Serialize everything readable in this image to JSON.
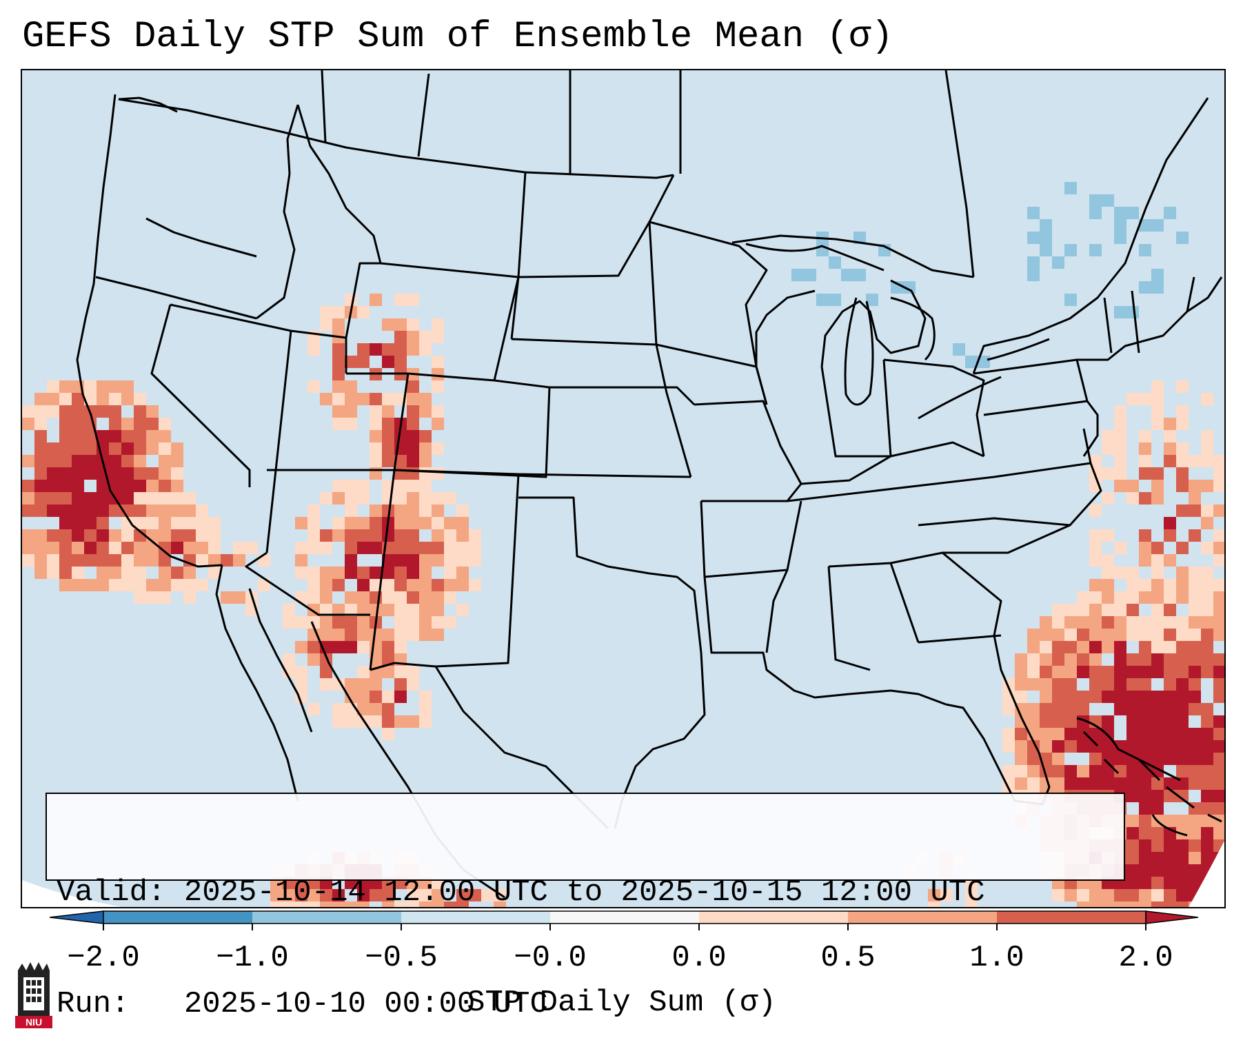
{
  "title": "GEFS Daily STP Sum of Ensemble Mean (σ)",
  "info": {
    "valid_line": "Valid: 2025-10-14 12:00 UTC to 2025-10-15 12:00 UTC",
    "run_line": "Run:   2025-10-10 00:00 UTC"
  },
  "colorbar": {
    "label": "STP Daily Sum (σ)",
    "ticks": [
      "−2.0",
      "−1.0",
      "−0.5",
      "−0.0",
      "0.0",
      "0.5",
      "1.0",
      "2.0"
    ],
    "bins": [
      {
        "range": "< -2.0",
        "color": "#2166ac"
      },
      {
        "range": "-2.0 to -1.0",
        "color": "#4393c3"
      },
      {
        "range": "-1.0 to -0.5",
        "color": "#92c5de"
      },
      {
        "range": "-0.5 to -0.0",
        "color": "#d1e5f0"
      },
      {
        "range": "-0.0 to 0.0",
        "color": "#f7f7f7"
      },
      {
        "range": "0.0 to 0.5",
        "color": "#fddbc7"
      },
      {
        "range": "0.5 to 1.0",
        "color": "#f4a582"
      },
      {
        "range": "1.0 to 2.0",
        "color": "#d6604d"
      },
      {
        "range": "> 2.0",
        "color": "#b2182b"
      }
    ]
  },
  "colors": {
    "background_field": "#d0e3ef",
    "no_data": "#ffffff",
    "level_1": "#fddbc7",
    "level_2": "#f4a582",
    "level_3": "#d6604d",
    "level_4": "#b2182b",
    "negative_1": "#92c5de"
  },
  "logo": {
    "icon": "niu-university-logo",
    "text": "NIU"
  },
  "anomaly_regions": [
    {
      "name": "eastern Pacific off California",
      "level": 4
    },
    {
      "name": "Four Corners / Arizona-New Mexico",
      "level": 4
    },
    {
      "name": "Utah-Colorado-Wyoming",
      "level": 4
    },
    {
      "name": "western Atlantic / Bahamas",
      "level": 4
    },
    {
      "name": "Great Lakes / Northeast",
      "level": -1
    }
  ]
}
